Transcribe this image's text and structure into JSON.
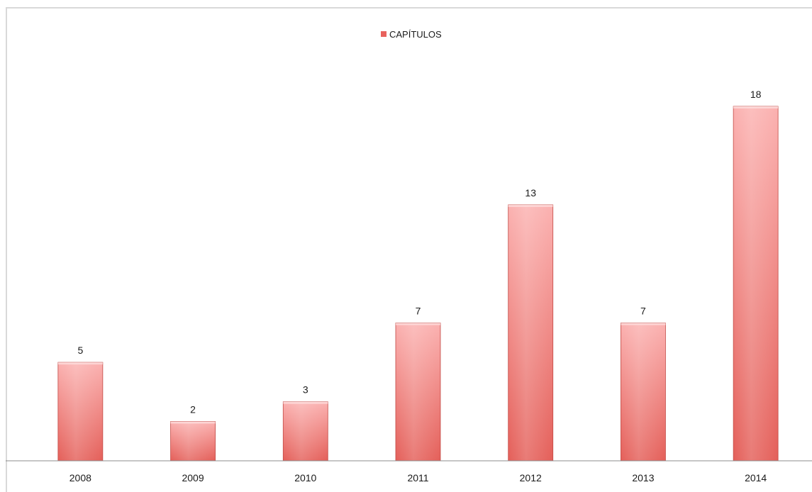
{
  "chart_data": {
    "type": "bar",
    "categories": [
      "2008",
      "2009",
      "2010",
      "2011",
      "2012",
      "2013",
      "2014"
    ],
    "series": [
      {
        "name": "CAPÍTULOS",
        "values": [
          5,
          2,
          3,
          7,
          13,
          7,
          18
        ]
      }
    ],
    "title": "",
    "xlabel": "",
    "ylabel": "",
    "ylim": [
      0,
      18
    ],
    "grid": false,
    "legend": "top-center",
    "data_labels": true,
    "colors": {
      "bar_top": "#fbb1b0",
      "bar_bottom": "#e45f59",
      "bar_edge": "#c24a45",
      "axis": "#8c8c8c",
      "legend_swatch": "#e8625d"
    }
  }
}
